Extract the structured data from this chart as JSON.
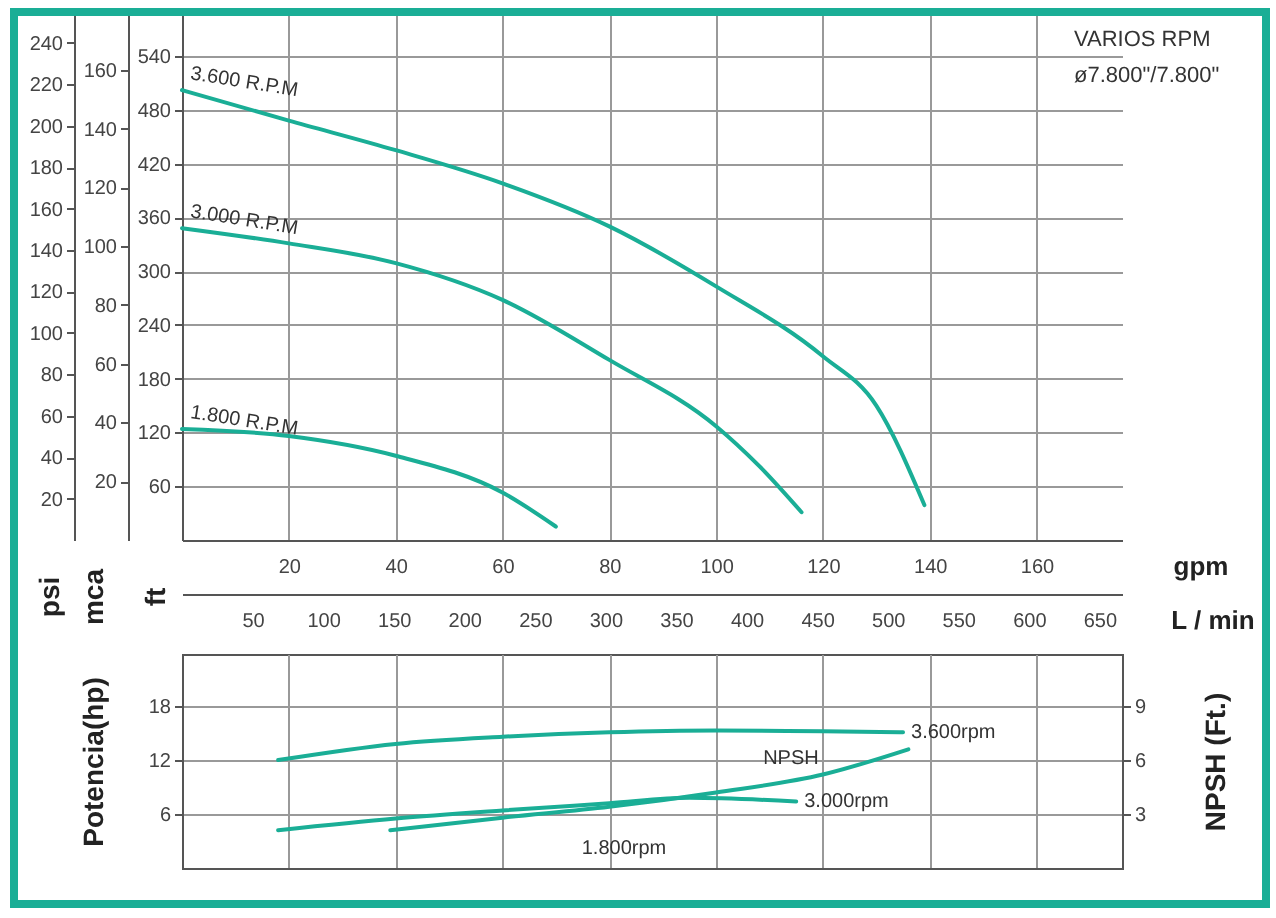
{
  "chart_data": [
    {
      "type": "line",
      "title": "VARIOS RPM",
      "subtitle": "ø7.800\"/7.800\"",
      "xlabel": "gpm",
      "x2label": "L / min",
      "ylabel": "ft",
      "y2label": "mca",
      "y3label": "psi",
      "xlim": [
        0,
        176
      ],
      "xticks": [
        20,
        40,
        60,
        80,
        100,
        120,
        140,
        160
      ],
      "x2lim": [
        0,
        666
      ],
      "x2ticks": [
        50,
        100,
        150,
        200,
        250,
        300,
        350,
        400,
        450,
        500,
        550,
        600,
        650
      ],
      "ylim": [
        0,
        587
      ],
      "yticks": [
        60,
        120,
        180,
        240,
        300,
        360,
        420,
        480,
        540
      ],
      "y2lim": [
        0,
        179
      ],
      "y2ticks": [
        20,
        40,
        60,
        80,
        100,
        120,
        140,
        160
      ],
      "y3lim": [
        0,
        254
      ],
      "y3ticks": [
        20,
        40,
        60,
        80,
        100,
        120,
        140,
        160,
        180,
        200,
        220,
        240
      ],
      "grid": true,
      "series": [
        {
          "name": "3.600 R.P.M",
          "color": "#1aae96",
          "x": [
            0,
            20,
            40,
            60,
            80,
            100,
            120,
            130,
            139
          ],
          "values": [
            502,
            468,
            435,
            398,
            350,
            283,
            205,
            150,
            39
          ]
        },
        {
          "name": "3.000 R.P.M",
          "color": "#1aae96",
          "x": [
            0,
            20,
            40,
            60,
            80,
            100,
            108,
            116
          ],
          "values": [
            348,
            331,
            309,
            268,
            201,
            127,
            83,
            31
          ]
        },
        {
          "name": "1.800 R.P.M",
          "color": "#1aae96",
          "x": [
            0,
            20,
            40,
            60,
            70
          ],
          "values": [
            124,
            116,
            94,
            53,
            15
          ]
        }
      ]
    },
    {
      "type": "line",
      "ylabel": "Potencia(hp)",
      "y2label": "NPSH (Ft.)",
      "xlim": [
        0,
        176
      ],
      "xticks": [
        20,
        40,
        60,
        80,
        100,
        120,
        140,
        160
      ],
      "ylim": [
        0,
        23.8
      ],
      "yticks": [
        6,
        12,
        18
      ],
      "y2lim": [
        0,
        11.9
      ],
      "y2ticks": [
        3,
        6,
        9
      ],
      "grid": true,
      "tick_labels": "y",
      "series": [
        {
          "name": "3.600rpm",
          "color": "#1aae96",
          "x": [
            18,
            40,
            60,
            80,
            100,
            120,
            135
          ],
          "values": [
            12.0,
            13.8,
            14.6,
            15.1,
            15.3,
            15.2,
            15.1
          ]
        },
        {
          "name": "3.000rpm",
          "color": "#1aae96",
          "x": [
            18,
            40,
            60,
            80,
            95,
            115
          ],
          "values": [
            4.2,
            5.5,
            6.4,
            7.2,
            7.8,
            7.4
          ]
        },
        {
          "name": "NPSH",
          "color": "#1aae96",
          "axis": "y2",
          "x": [
            39,
            60,
            80,
            100,
            120,
            136
          ],
          "values": [
            2.1,
            2.8,
            3.4,
            4.2,
            5.2,
            6.6
          ]
        }
      ],
      "annotations": [
        "1.800rpm"
      ]
    }
  ]
}
